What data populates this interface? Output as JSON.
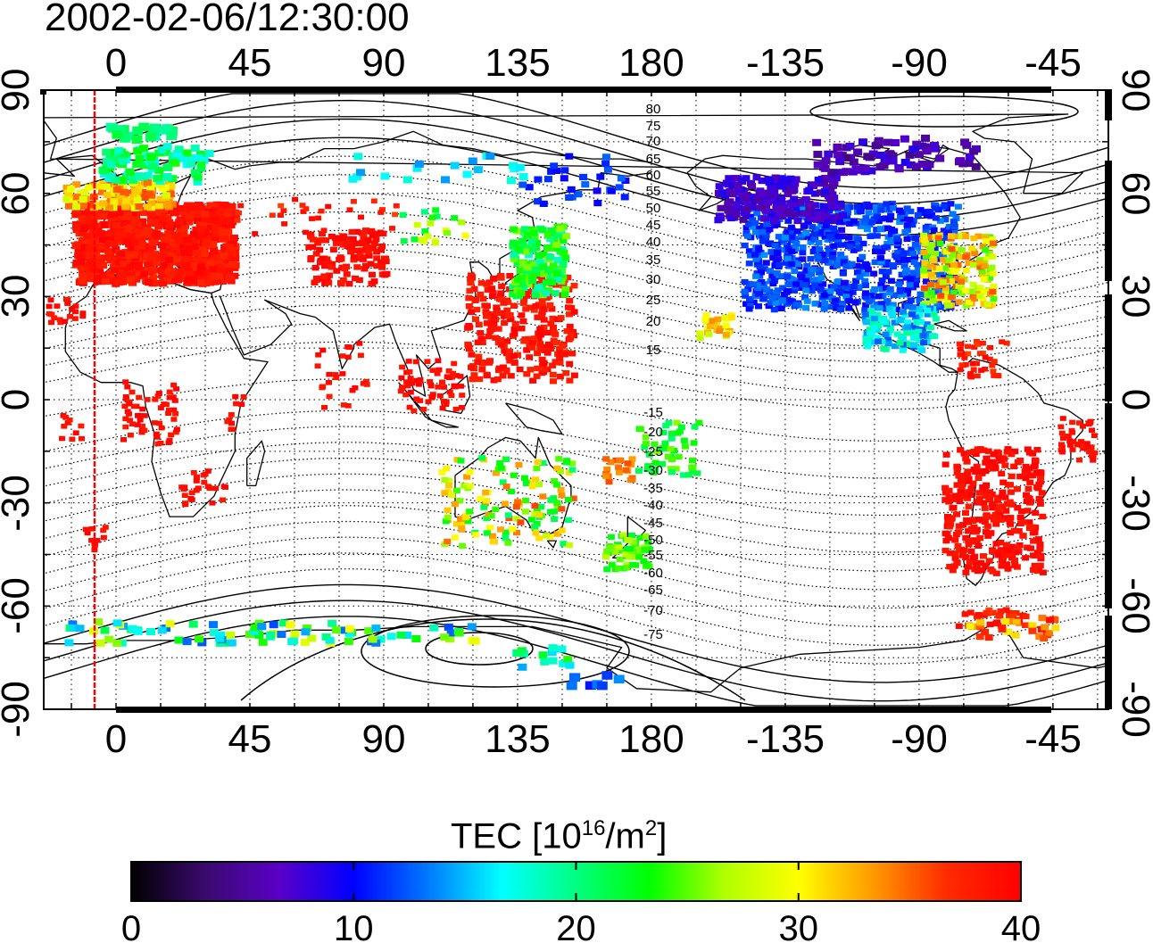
{
  "timestamp": "2002-02-06/12:30:00",
  "map": {
    "top_lon_ticks": [
      "0",
      "45",
      "90",
      "135",
      "180",
      "-135",
      "-90",
      "-45"
    ],
    "bottom_lon_ticks": [
      "0",
      "45",
      "90",
      "135",
      "180",
      "-135",
      "-90",
      "-45"
    ],
    "left_lat_ticks": [
      "90",
      "60",
      "30",
      "0",
      "-30",
      "-60",
      "-90"
    ],
    "right_lat_ticks": [
      "90",
      "60",
      "30",
      "0",
      "-30",
      "-60",
      "-90"
    ],
    "contour_labels_north": [
      "80",
      "75",
      "70",
      "65",
      "60",
      "55",
      "50",
      "45",
      "40",
      "35",
      "30",
      "25",
      "20",
      "15"
    ],
    "contour_labels_south": [
      "-15",
      "-20",
      "-25",
      "-30",
      "-35",
      "-40",
      "-45",
      "-50",
      "-55",
      "-60",
      "-65",
      "-70",
      "-75"
    ],
    "terminator_color": "#ff0000"
  },
  "colorbar": {
    "title_prefix": "TEC  [10",
    "title_exp1": "16",
    "title_mid": "/m",
    "title_exp2": "2",
    "title_suffix": "]",
    "ticks": [
      "0",
      "10",
      "20",
      "30",
      "40"
    ],
    "min": 0,
    "max": 40,
    "colors": [
      "#000000",
      "#3a0a6e",
      "#5a00c8",
      "#0000ff",
      "#0078ff",
      "#00ffff",
      "#00ff80",
      "#00ff00",
      "#b0ff00",
      "#ffff00",
      "#ff9a00",
      "#ff2a00",
      "#ff0000"
    ]
  }
}
